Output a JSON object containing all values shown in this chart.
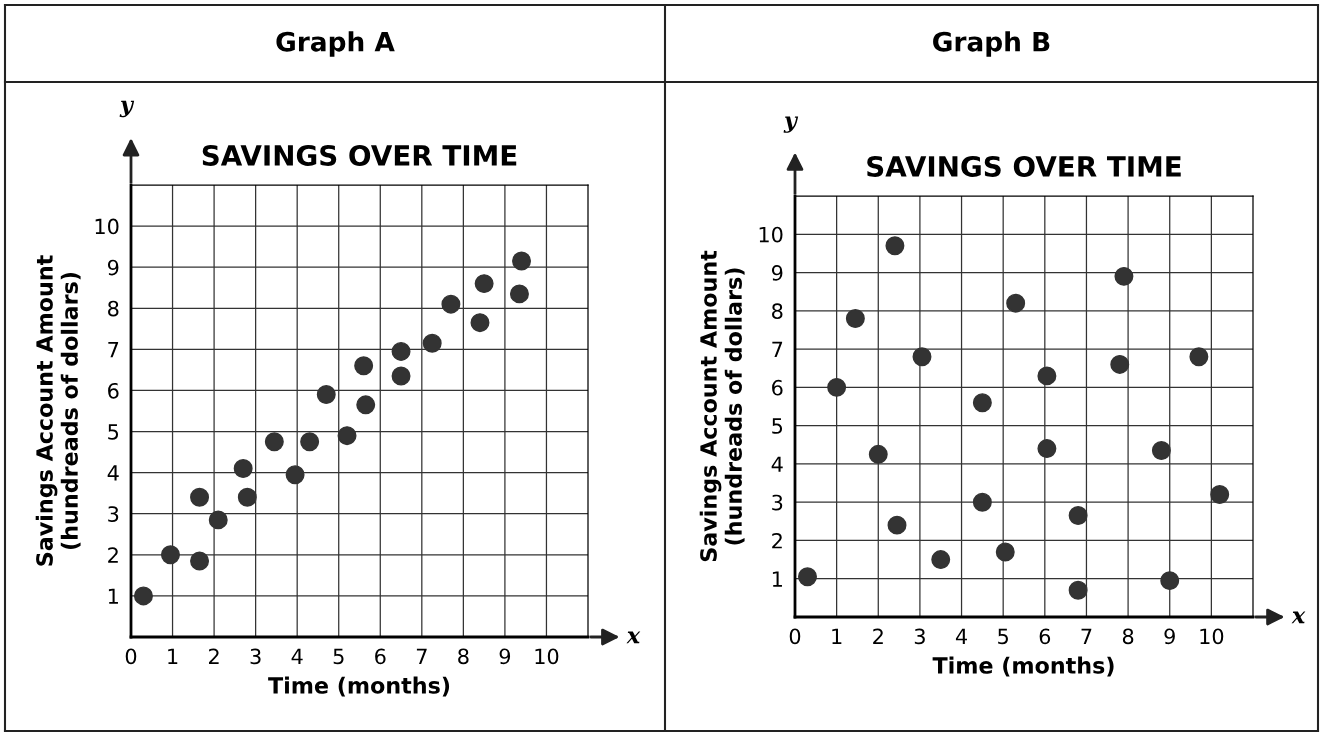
{
  "chart_data": [
    {
      "type": "scatter",
      "title": "Graph A",
      "subtitle": "SAVINGS OVER TIME",
      "xlabel": "Time (months)",
      "ylabel": "Savings Account Amount\n(hundreads of dollars)",
      "annotations": [
        "x",
        "y"
      ],
      "x": [
        0.3,
        0.95,
        1.65,
        1.65,
        2.1,
        2.7,
        2.8,
        3.45,
        3.95,
        4.3,
        5.2,
        4.7,
        5.6,
        5.65,
        6.5,
        6.5,
        7.25,
        7.7,
        8.4,
        8.5,
        9.35,
        9.4
      ],
      "values": [
        1.0,
        2.0,
        1.85,
        3.4,
        2.85,
        4.1,
        3.4,
        4.75,
        3.95,
        4.75,
        4.9,
        5.9,
        6.6,
        5.65,
        6.95,
        6.35,
        7.15,
        8.1,
        7.65,
        8.6,
        8.35,
        9.15
      ],
      "color": "#333333",
      "marker": "circle",
      "grid": true,
      "xlim": [
        0,
        11
      ],
      "ylim": [
        0,
        11
      ],
      "xticks": [
        0,
        1,
        2,
        3,
        4,
        5,
        6,
        7,
        8,
        9,
        10
      ],
      "yticks": [
        1,
        2,
        3,
        4,
        5,
        6,
        7,
        8,
        9,
        10
      ]
    },
    {
      "type": "scatter",
      "title": "Graph B",
      "subtitle": "SAVINGS OVER TIME",
      "xlabel": "Time (months)",
      "ylabel": "Savings Account Amount\n(hundreads of dollars)",
      "annotations": [
        "x",
        "y"
      ],
      "x": [
        0.3,
        1.0,
        1.45,
        2.4,
        2.0,
        2.45,
        3.05,
        3.5,
        4.5,
        4.5,
        5.05,
        5.3,
        6.05,
        6.05,
        6.8,
        6.8,
        7.9,
        7.8,
        8.8,
        9.0,
        9.7,
        10.2
      ],
      "values": [
        1.05,
        6.0,
        7.8,
        9.7,
        4.25,
        2.4,
        6.8,
        1.5,
        5.6,
        3.0,
        1.7,
        8.2,
        6.3,
        4.4,
        2.65,
        0.7,
        8.9,
        6.6,
        4.35,
        0.95,
        6.8,
        3.2
      ],
      "color": "#333333",
      "marker": "circle",
      "grid": true,
      "xlim": [
        0,
        11
      ],
      "ylim": [
        0,
        11
      ],
      "xticks": [
        0,
        1,
        2,
        3,
        4,
        5,
        6,
        7,
        8,
        9,
        10
      ],
      "yticks": [
        1,
        2,
        3,
        4,
        5,
        6,
        7,
        8,
        9,
        10
      ]
    }
  ]
}
